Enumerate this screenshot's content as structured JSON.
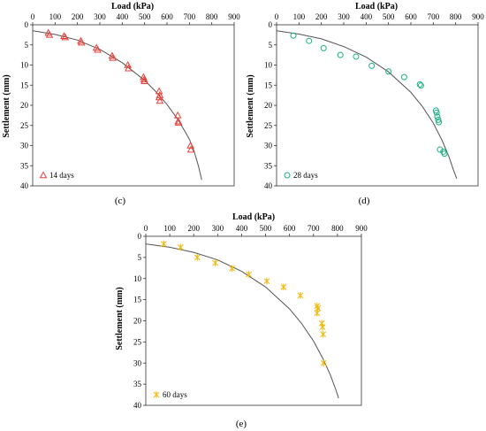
{
  "chart_data": [
    {
      "id": "c",
      "type": "scatter",
      "panel_label": "(c)",
      "xlabel": "Load (kPa)",
      "ylabel": "Settlement (mm)",
      "xlim": [
        0,
        900
      ],
      "ylim": [
        0,
        40
      ],
      "y_inverted": true,
      "x_ticks": [
        "0",
        "100",
        "200",
        "300",
        "400",
        "500",
        "600",
        "700",
        "800",
        "900"
      ],
      "y_ticks": [
        "0",
        "5",
        "10",
        "15",
        "20",
        "25",
        "30",
        "35",
        "40"
      ],
      "grid": false,
      "legend_position": "bottom-left",
      "series": [
        {
          "name": "14 days",
          "marker": "triangle",
          "color": "#e8413c",
          "points": [
            [
              70,
              2.0
            ],
            [
              75,
              2.5
            ],
            [
              140,
              2.8
            ],
            [
              145,
              3.1
            ],
            [
              215,
              4.0
            ],
            [
              218,
              4.4
            ],
            [
              285,
              5.7
            ],
            [
              290,
              6.2
            ],
            [
              355,
              7.7
            ],
            [
              358,
              8.2
            ],
            [
              425,
              10.0
            ],
            [
              428,
              10.8
            ],
            [
              495,
              13.0
            ],
            [
              498,
              13.6
            ],
            [
              500,
              14.0
            ],
            [
              565,
              16.5
            ],
            [
              568,
              17.5
            ],
            [
              565,
              18.0
            ],
            [
              568,
              18.9
            ],
            [
              648,
              22.5
            ],
            [
              650,
              24.0
            ],
            [
              652,
              24.3
            ],
            [
              705,
              30.0
            ],
            [
              707,
              31.0
            ]
          ]
        }
      ],
      "fit_curve": {
        "color": "#555555",
        "points": [
          [
            0,
            1.5
          ],
          [
            100,
            2.4
          ],
          [
            200,
            3.8
          ],
          [
            300,
            6.1
          ],
          [
            400,
            9.4
          ],
          [
            500,
            13.8
          ],
          [
            550,
            16.6
          ],
          [
            600,
            19.8
          ],
          [
            650,
            23.6
          ],
          [
            700,
            28.4
          ],
          [
            720,
            31.2
          ],
          [
            740,
            35.0
          ],
          [
            755,
            38.5
          ]
        ]
      }
    },
    {
      "id": "d",
      "type": "scatter",
      "panel_label": "(d)",
      "xlabel": "Load (kPa)",
      "ylabel": "Settlement (mm)",
      "xlim": [
        0,
        900
      ],
      "ylim": [
        0,
        40
      ],
      "y_inverted": true,
      "x_ticks": [
        "0",
        "100",
        "200",
        "300",
        "400",
        "500",
        "600",
        "700",
        "800",
        "900"
      ],
      "y_ticks": [
        "0",
        "5",
        "10",
        "15",
        "20",
        "25",
        "30",
        "35",
        "40"
      ],
      "grid": false,
      "legend_position": "bottom-left",
      "series": [
        {
          "name": "28 days",
          "marker": "circle",
          "color": "#1aaf85",
          "points": [
            [
              75,
              2.7
            ],
            [
              145,
              4.0
            ],
            [
              210,
              5.8
            ],
            [
              285,
              7.5
            ],
            [
              355,
              7.9
            ],
            [
              425,
              10.2
            ],
            [
              500,
              11.6
            ],
            [
              570,
              13.0
            ],
            [
              640,
              14.8
            ],
            [
              645,
              15.1
            ],
            [
              712,
              21.3
            ],
            [
              715,
              21.8
            ],
            [
              718,
              22.8
            ],
            [
              722,
              23.6
            ],
            [
              725,
              24.2
            ],
            [
              730,
              31.0
            ],
            [
              745,
              31.5
            ],
            [
              750,
              32.0
            ]
          ]
        }
      ],
      "fit_curve": {
        "color": "#555555",
        "points": [
          [
            0,
            1.5
          ],
          [
            100,
            2.3
          ],
          [
            200,
            3.5
          ],
          [
            300,
            5.4
          ],
          [
            400,
            8.0
          ],
          [
            500,
            11.7
          ],
          [
            600,
            16.8
          ],
          [
            650,
            20.2
          ],
          [
            700,
            24.4
          ],
          [
            740,
            28.8
          ],
          [
            770,
            32.8
          ],
          [
            790,
            36.0
          ],
          [
            805,
            38.2
          ]
        ]
      }
    },
    {
      "id": "e",
      "type": "scatter",
      "panel_label": "(e)",
      "xlabel": "Load (kPa)",
      "ylabel": "Settlement (mm)",
      "xlim": [
        0,
        900
      ],
      "ylim": [
        0,
        40
      ],
      "y_inverted": true,
      "x_ticks": [
        "0",
        "100",
        "200",
        "300",
        "400",
        "500",
        "600",
        "700",
        "800",
        "900"
      ],
      "y_ticks": [
        "0",
        "5",
        "10",
        "15",
        "20",
        "25",
        "30",
        "35",
        "40"
      ],
      "grid": false,
      "legend_position": "bottom-left",
      "series": [
        {
          "name": "60 days",
          "marker": "asterisk",
          "color": "#f2b90f",
          "points": [
            [
              75,
              1.8
            ],
            [
              145,
              2.6
            ],
            [
              215,
              5.0
            ],
            [
              290,
              6.3
            ],
            [
              360,
              7.6
            ],
            [
              430,
              9.0
            ],
            [
              505,
              10.6
            ],
            [
              575,
              12.0
            ],
            [
              645,
              14.0
            ],
            [
              715,
              16.5
            ],
            [
              718,
              17.0
            ],
            [
              715,
              18.2
            ],
            [
              735,
              20.6
            ],
            [
              738,
              21.5
            ],
            [
              740,
              23.2
            ],
            [
              742,
              30.0
            ]
          ]
        }
      ],
      "fit_curve": {
        "color": "#555555",
        "points": [
          [
            0,
            1.8
          ],
          [
            100,
            2.6
          ],
          [
            200,
            3.8
          ],
          [
            300,
            5.6
          ],
          [
            400,
            8.3
          ],
          [
            500,
            12.0
          ],
          [
            600,
            17.2
          ],
          [
            650,
            20.6
          ],
          [
            700,
            24.8
          ],
          [
            740,
            29.0
          ],
          [
            770,
            32.8
          ],
          [
            790,
            35.8
          ],
          [
            805,
            38.3
          ]
        ]
      }
    }
  ]
}
